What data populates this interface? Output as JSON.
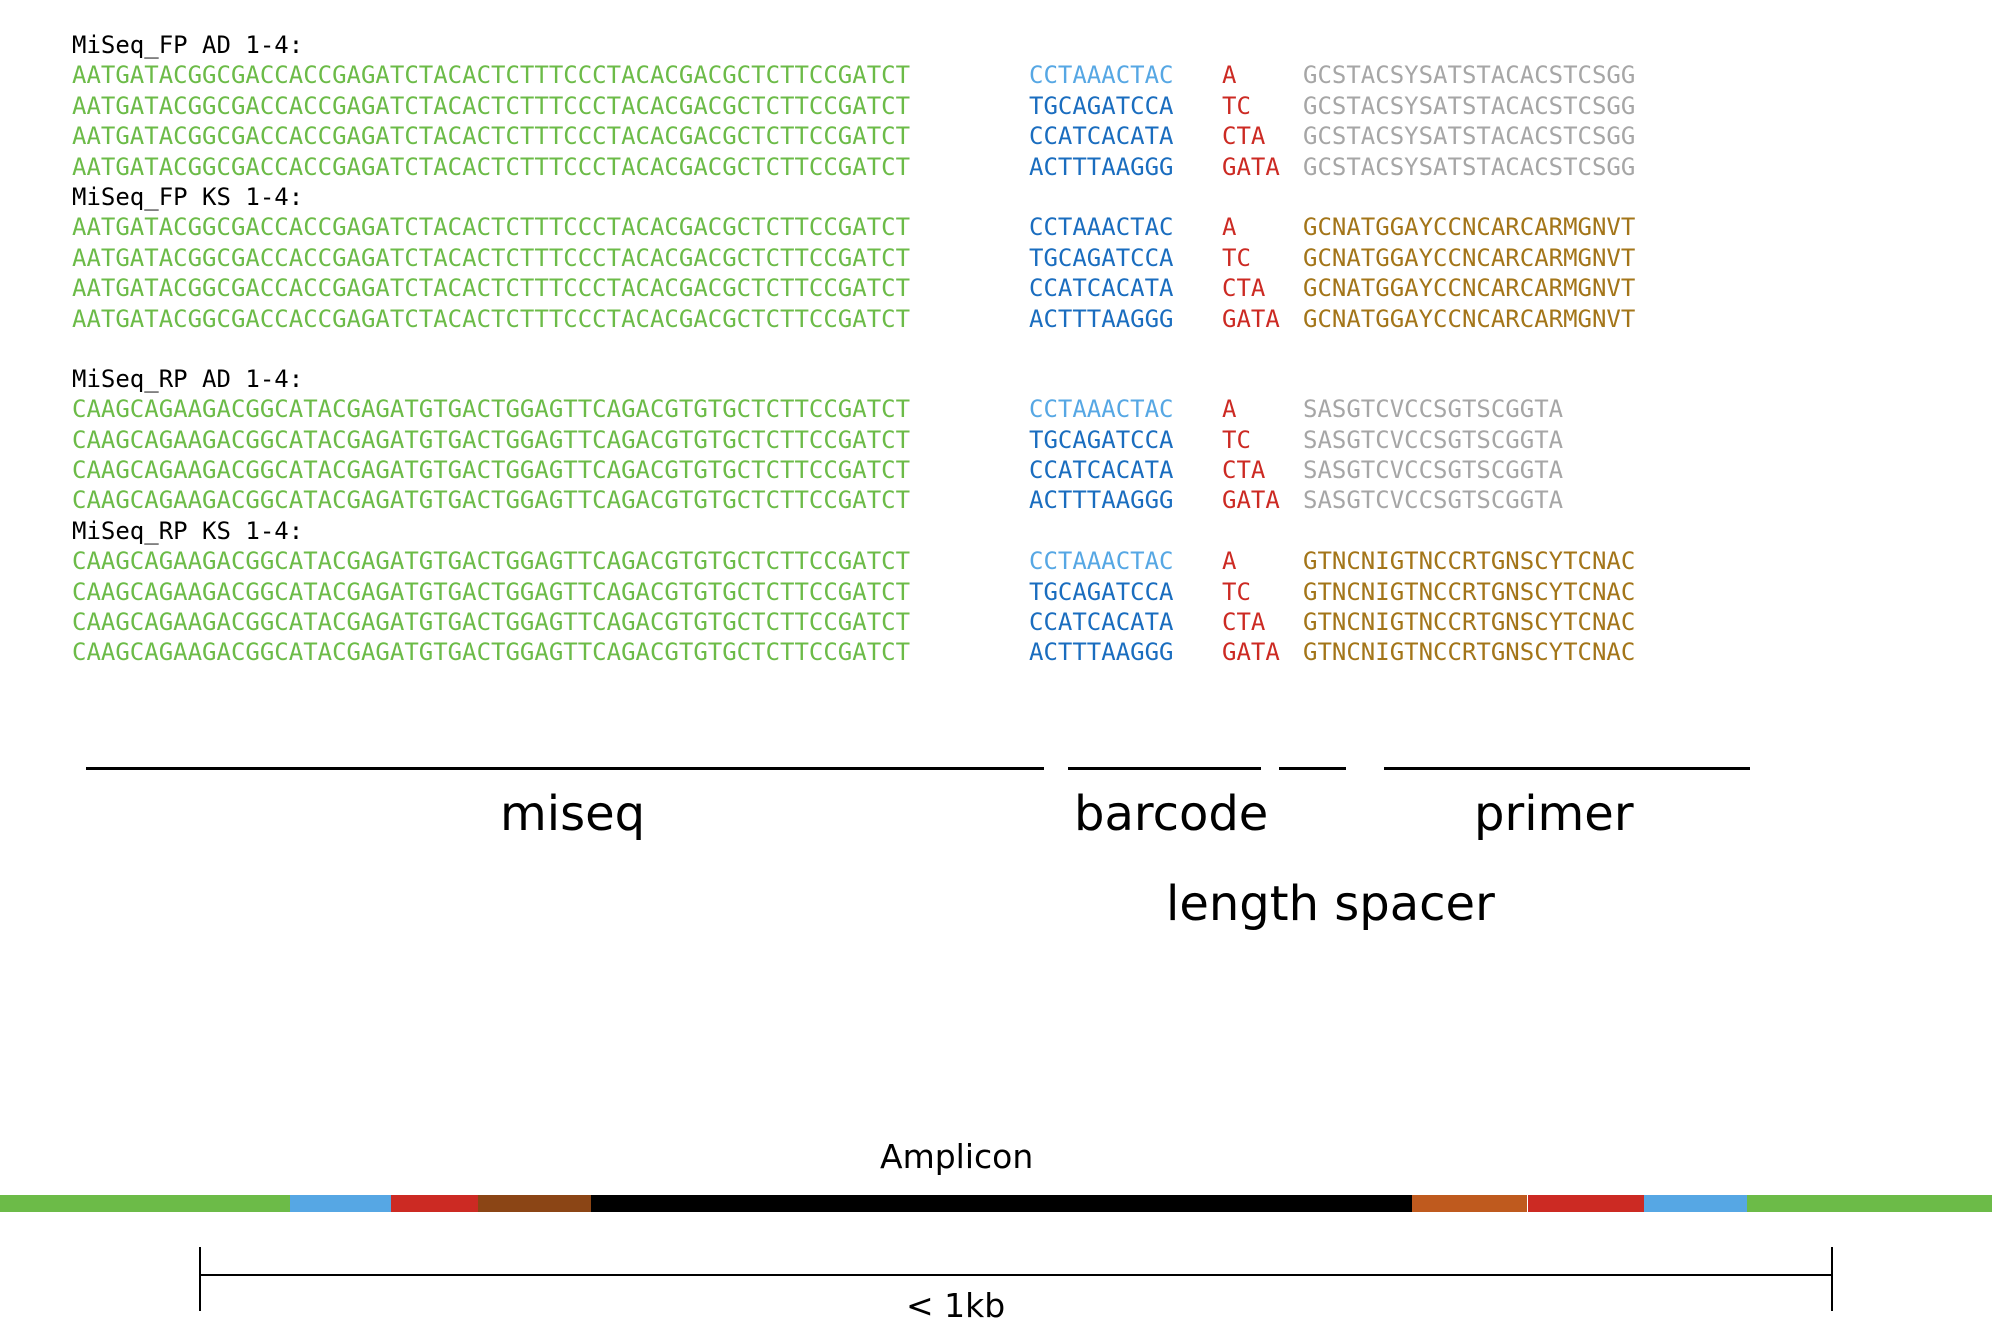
{
  "colors": {
    "miseq": "#6cbb48",
    "barcode_dark": "#1a6dbf",
    "barcode_light": "#56a7e4",
    "spacer": "#cc2a23",
    "primer_grey": "#a6a6a6",
    "primer_gold": "#a37519",
    "amplicon_black": "#000000",
    "amplicon_brown": "#8b4515",
    "amplicon_orange": "#bf5a1e"
  },
  "groups": [
    {
      "header": "MiSeq_FP AD 1-4:",
      "primer_style": "grey",
      "rows": [
        {
          "miseq": "AATGATACGGCGACCACCGAGATCTACACTCTTTCCCTACACGACGCTCTTCCGATCT",
          "barcode": "CCTAAACTAC",
          "barcode_style": "light",
          "spacer": "A",
          "primer": "GCSTACSYSATSTACACSTCSGG"
        },
        {
          "miseq": "AATGATACGGCGACCACCGAGATCTACACTCTTTCCCTACACGACGCTCTTCCGATCT",
          "barcode": "TGCAGATCCA",
          "barcode_style": "dark",
          "spacer": "TC",
          "primer": "GCSTACSYSATSTACACSTCSGG"
        },
        {
          "miseq": "AATGATACGGCGACCACCGAGATCTACACTCTTTCCCTACACGACGCTCTTCCGATCT",
          "barcode": "CCATCACATA",
          "barcode_style": "dark",
          "spacer": "CTA",
          "primer": "GCSTACSYSATSTACACSTCSGG"
        },
        {
          "miseq": "AATGATACGGCGACCACCGAGATCTACACTCTTTCCCTACACGACGCTCTTCCGATCT",
          "barcode": "ACTTTAAGGG",
          "barcode_style": "dark",
          "spacer": "GATA",
          "primer": "GCSTACSYSATSTACACSTCSGG"
        }
      ]
    },
    {
      "header": "MiSeq_FP KS 1-4:",
      "primer_style": "gold",
      "rows": [
        {
          "miseq": "AATGATACGGCGACCACCGAGATCTACACTCTTTCCCTACACGACGCTCTTCCGATCT",
          "barcode": "CCTAAACTAC",
          "barcode_style": "dark",
          "spacer": "A",
          "primer": "GCNATGGAYCCNCARCARMGNVT"
        },
        {
          "miseq": "AATGATACGGCGACCACCGAGATCTACACTCTTTCCCTACACGACGCTCTTCCGATCT",
          "barcode": "TGCAGATCCA",
          "barcode_style": "dark",
          "spacer": "TC",
          "primer": "GCNATGGAYCCNCARCARMGNVT"
        },
        {
          "miseq": "AATGATACGGCGACCACCGAGATCTACACTCTTTCCCTACACGACGCTCTTCCGATCT",
          "barcode": "CCATCACATA",
          "barcode_style": "dark",
          "spacer": "CTA",
          "primer": "GCNATGGAYCCNCARCARMGNVT"
        },
        {
          "miseq": "AATGATACGGCGACCACCGAGATCTACACTCTTTCCCTACACGACGCTCTTCCGATCT",
          "barcode": "ACTTTAAGGG",
          "barcode_style": "dark",
          "spacer": "GATA",
          "primer": "GCNATGGAYCCNCARCARMGNVT"
        }
      ]
    },
    {
      "header": "MiSeq_RP AD 1-4:",
      "primer_style": "grey",
      "rows": [
        {
          "miseq": "CAAGCAGAAGACGGCATACGAGATGTGACTGGAGTTCAGACGTGTGCTCTTCCGATCT",
          "barcode": "CCTAAACTAC",
          "barcode_style": "light",
          "spacer": "A",
          "primer": "SASGTCVCCSGTSCGGTA"
        },
        {
          "miseq": "CAAGCAGAAGACGGCATACGAGATGTGACTGGAGTTCAGACGTGTGCTCTTCCGATCT",
          "barcode": "TGCAGATCCA",
          "barcode_style": "dark",
          "spacer": "TC",
          "primer": "SASGTCVCCSGTSCGGTA"
        },
        {
          "miseq": "CAAGCAGAAGACGGCATACGAGATGTGACTGGAGTTCAGACGTGTGCTCTTCCGATCT",
          "barcode": "CCATCACATA",
          "barcode_style": "dark",
          "spacer": "CTA",
          "primer": "SASGTCVCCSGTSCGGTA"
        },
        {
          "miseq": "CAAGCAGAAGACGGCATACGAGATGTGACTGGAGTTCAGACGTGTGCTCTTCCGATCT",
          "barcode": "ACTTTAAGGG",
          "barcode_style": "dark",
          "spacer": "GATA",
          "primer": "SASGTCVCCSGTSCGGTA"
        }
      ]
    },
    {
      "header": "MiSeq_RP KS 1-4:",
      "primer_style": "gold",
      "rows": [
        {
          "miseq": "CAAGCAGAAGACGGCATACGAGATGTGACTGGAGTTCAGACGTGTGCTCTTCCGATCT",
          "barcode": "CCTAAACTAC",
          "barcode_style": "light",
          "spacer": "A",
          "primer": "GTNCNIGTNCCRTGNSCYTCNAC"
        },
        {
          "miseq": "CAAGCAGAAGACGGCATACGAGATGTGACTGGAGTTCAGACGTGTGCTCTTCCGATCT",
          "barcode": "TGCAGATCCA",
          "barcode_style": "dark",
          "spacer": "TC",
          "primer": "GTNCNIGTNCCRTGNSCYTCNAC"
        },
        {
          "miseq": "CAAGCAGAAGACGGCATACGAGATGTGACTGGAGTTCAGACGTGTGCTCTTCCGATCT",
          "barcode": "CCATCACATA",
          "barcode_style": "dark",
          "spacer": "CTA",
          "primer": "GTNCNIGTNCCRTGNSCYTCNAC"
        },
        {
          "miseq": "CAAGCAGAAGACGGCATACGAGATGTGACTGGAGTTCAGACGTGTGCTCTTCCGATCT",
          "barcode": "ACTTTAAGGG",
          "barcode_style": "dark",
          "spacer": "GATA",
          "primer": "GTNCNIGTNCCRTGNSCYTCNAC"
        }
      ]
    }
  ],
  "regions": {
    "miseq": "miseq",
    "barcode": "barcode",
    "primer": "primer",
    "length_spacer": "length spacer"
  },
  "amplicon": {
    "label": "Amplicon",
    "size_label": "< 1kb",
    "segments": [
      "green",
      "light-blue",
      "red",
      "brown",
      "black",
      "orange",
      "red",
      "light-blue",
      "green"
    ]
  }
}
